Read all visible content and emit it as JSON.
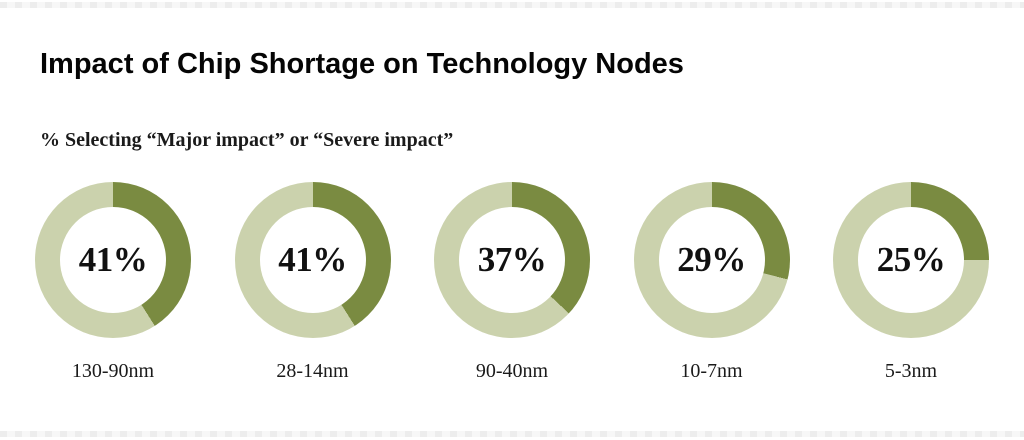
{
  "header": {
    "title": "Impact of Chip Shortage on Technology Nodes",
    "subtitle": "% Selecting “Major impact” or “Severe impact”"
  },
  "chart_data": {
    "type": "pie",
    "variant": "donut_small_multiples",
    "title": "Impact of Chip Shortage on Technology Nodes",
    "subtitle": "% Selecting “Major impact” or “Severe impact”",
    "categories": [
      "130-90nm",
      "28-14nm",
      "90-40nm",
      "10-7nm",
      "5-3nm"
    ],
    "values": [
      41,
      41,
      37,
      29,
      25
    ],
    "unit": "%",
    "segment_start": "top",
    "segment_direction": "clockwise",
    "legend": "none",
    "colors": {
      "selected": "#7A8B41",
      "remainder": "#CBD2AD",
      "value_text": "#111111",
      "title_text": "#050505"
    }
  }
}
